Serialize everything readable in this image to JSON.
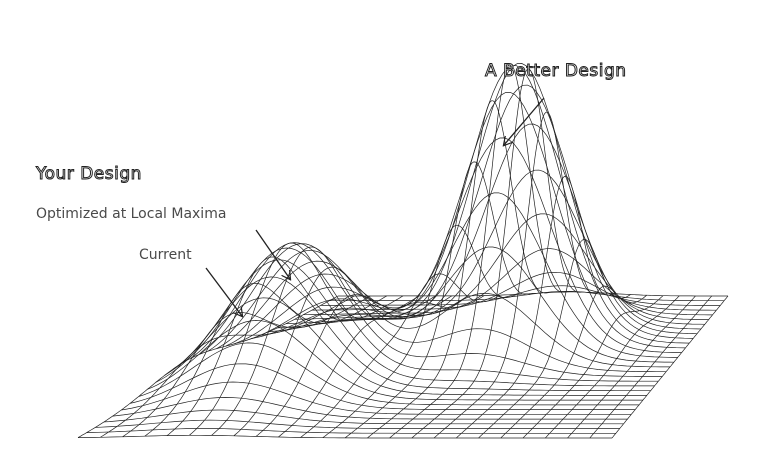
{
  "labels": {
    "better_design": "A Better Design",
    "your_design": "Your Design",
    "optimized": "Optimized at Local Maxima",
    "current": "Current"
  },
  "colors": {
    "mesh": "#222222",
    "text": "#4a4a4a",
    "background": "#ffffff"
  },
  "surface": {
    "rows": 30,
    "cols": 24,
    "peaks": [
      {
        "role": "local-maximum",
        "height": 0.48
      },
      {
        "role": "global-maximum",
        "height": 1.0
      }
    ]
  }
}
